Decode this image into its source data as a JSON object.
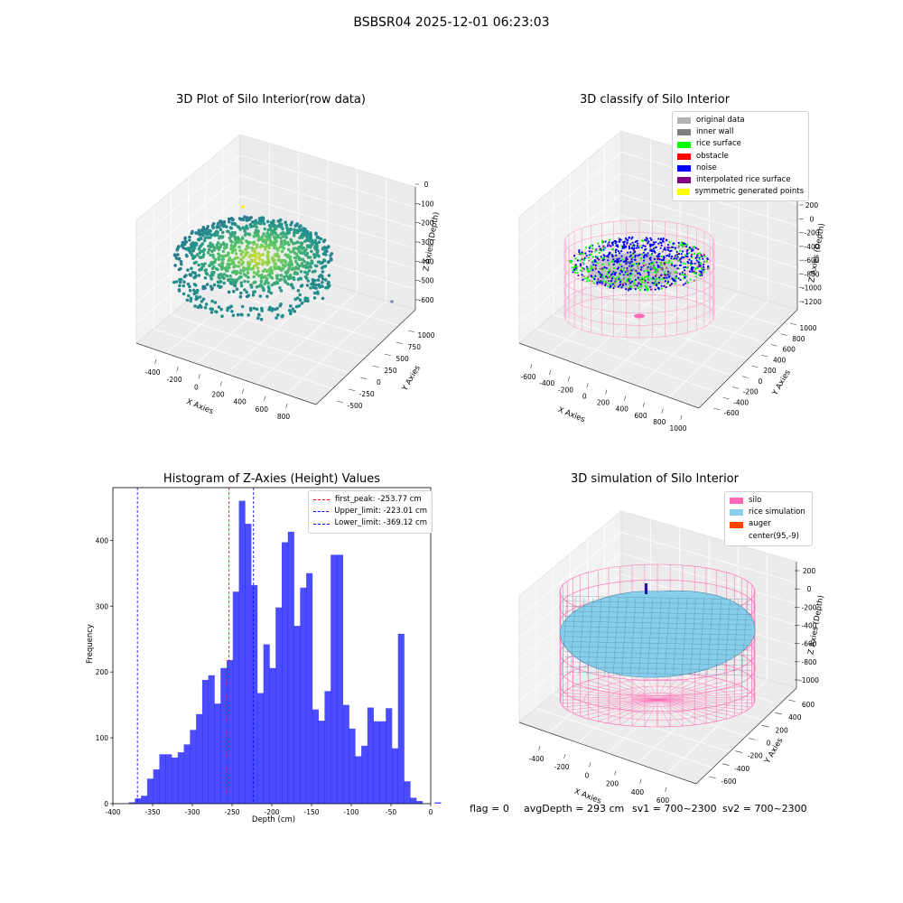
{
  "suptitle": "BSBSR04 2025-12-01 06:23:03",
  "panels": {
    "raw": {
      "title": "3D Plot of Silo Interior(row data)",
      "xlabel": "X Axies",
      "ylabel": "Y Axies",
      "zlabel": "Z Axies (Depth)",
      "xticks": [
        "-400",
        "-200",
        "0",
        "200",
        "400",
        "600",
        "800"
      ],
      "yticks": [
        "-500",
        "-250",
        "0",
        "250",
        "500",
        "750",
        "1000"
      ],
      "zticks": [
        "0",
        "-100",
        "-200",
        "-300",
        "-400",
        "-500",
        "-600"
      ]
    },
    "classify": {
      "title": "3D classify of Silo Interior",
      "xlabel": "X Axies",
      "ylabel": "Y Axies",
      "zlabel": "Z Axies (Depth)",
      "xticks": [
        "-600",
        "-400",
        "-200",
        "0",
        "200",
        "400",
        "600",
        "800",
        "1000"
      ],
      "yticks": [
        "-600",
        "-400",
        "-200",
        "0",
        "200",
        "400",
        "600",
        "800",
        "1000"
      ],
      "zticks": [
        "200",
        "0",
        "-200",
        "-400",
        "-600",
        "-800",
        "-1000",
        "-1200"
      ],
      "legend": [
        {
          "label": "original data",
          "color": "#b3b3b3"
        },
        {
          "label": "inner wall",
          "color": "#808080"
        },
        {
          "label": "rice surface",
          "color": "#00ff00"
        },
        {
          "label": "obstacle",
          "color": "#ff0000"
        },
        {
          "label": "noise",
          "color": "#0000ff"
        },
        {
          "label": "interpolated rice surface",
          "color": "#800080"
        },
        {
          "label": "symmetric generated points",
          "color": "#ffff00"
        }
      ]
    },
    "simulation": {
      "title": "3D simulation of Silo Interior",
      "xlabel": "X Axies",
      "ylabel": "Y Axies",
      "zlabel": "Z Axies (Depth)",
      "xticks": [
        "-400",
        "-200",
        "0",
        "200",
        "400",
        "600"
      ],
      "yticks": [
        "-600",
        "-400",
        "-200",
        "0",
        "200",
        "400",
        "600"
      ],
      "zticks": [
        "200",
        "0",
        "-200",
        "-400",
        "-600",
        "-800",
        "-1000"
      ],
      "legend": [
        {
          "label": "silo",
          "color": "#ff69b4"
        },
        {
          "label": "rice simulation",
          "color": "#87ceeb"
        },
        {
          "label": "auger",
          "color": "#ff4500"
        },
        {
          "label": "center(95,-9)",
          "color": ""
        }
      ]
    }
  },
  "footer": {
    "flag": "flag = 0",
    "avg": "avgDepth = 293 cm",
    "sv1": "sv1 = 700~2300",
    "sv2": "sv2 = 700~2300"
  },
  "chart_data": {
    "type": "bar",
    "title": "Histogram of Z-Axies (Height) Values",
    "xlabel": "Depth (cm)",
    "ylabel": "Frequency",
    "xlim": [
      -400,
      0
    ],
    "ylim": [
      0,
      480
    ],
    "xticks": [
      -400,
      -350,
      -300,
      -250,
      -200,
      -150,
      -100,
      -50,
      0
    ],
    "yticks": [
      0,
      100,
      200,
      300,
      400
    ],
    "bin_width": 7.7,
    "bin_start": -380,
    "bar_color": "#0000ff",
    "values": [
      2,
      8,
      12,
      38,
      52,
      75,
      75,
      70,
      78,
      90,
      112,
      136,
      188,
      195,
      152,
      206,
      218,
      322,
      460,
      425,
      332,
      168,
      242,
      206,
      298,
      397,
      413,
      270,
      328,
      350,
      143,
      126,
      171,
      378,
      378,
      150,
      114,
      72,
      88,
      146,
      125,
      125,
      145,
      84,
      258,
      34,
      9,
      4,
      0,
      0,
      2
    ],
    "lines": [
      {
        "label": "first_peak: -253.77 cm",
        "x": -253.77,
        "color": "#ff0000"
      },
      {
        "label": "Upper_limit: -223.01 cm",
        "x": -223.01,
        "color": "#0000ff"
      },
      {
        "label": "Lower_limit: -369.12 cm",
        "x": -369.12,
        "color": "#0000ff"
      }
    ]
  }
}
